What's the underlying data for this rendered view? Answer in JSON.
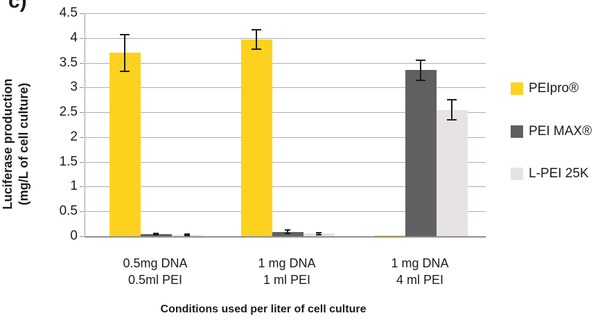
{
  "figure_label": "c)",
  "chart_data": {
    "type": "bar",
    "title": "",
    "ylabel_line1": "Luciferase production",
    "ylabel_line2": "(mg/L of cell culture)",
    "xlabel": "Conditions used per liter of cell culture",
    "ylim": [
      0,
      4.5
    ],
    "grid": true,
    "legend_position": "right",
    "yticks": [
      {
        "value": 0,
        "label": "0"
      },
      {
        "value": 0.5,
        "label": "0.5"
      },
      {
        "value": 1,
        "label": "1"
      },
      {
        "value": 1.5,
        "label": "1.5"
      },
      {
        "value": 2,
        "label": "2"
      },
      {
        "value": 2.5,
        "label": "2.5"
      },
      {
        "value": 3,
        "label": "3"
      },
      {
        "value": 3.5,
        "label": "3.5"
      },
      {
        "value": 4,
        "label": "4"
      },
      {
        "value": 4.5,
        "label": "4.5"
      }
    ],
    "categories": [
      {
        "line1": "0.5mg DNA",
        "line2": "0.5ml PEI"
      },
      {
        "line1": "1 mg DNA",
        "line2": "1 ml PEI"
      },
      {
        "line1": "1 mg DNA",
        "line2": "4 ml PEI"
      }
    ],
    "series": [
      {
        "name": "PEIpro®",
        "color": "#FCD21E",
        "values": [
          3.7,
          3.97,
          0.015
        ],
        "errors": [
          0.37,
          0.19,
          0
        ]
      },
      {
        "name": "PEI MAX®",
        "color": "#606063",
        "values": [
          0.04,
          0.09,
          3.35
        ],
        "errors": [
          0.015,
          0.03,
          0.2
        ]
      },
      {
        "name": "L-PEI 25K",
        "color": "#E6E2E6",
        "values": [
          0.025,
          0.05,
          2.55
        ],
        "errors": [
          0.012,
          0.025,
          0.2
        ]
      }
    ],
    "colors": {
      "gridline": "#ADADAD",
      "axis": "#8F8F8F",
      "error_bar": "#1A1A1A",
      "text": "#1B1B1B"
    }
  }
}
